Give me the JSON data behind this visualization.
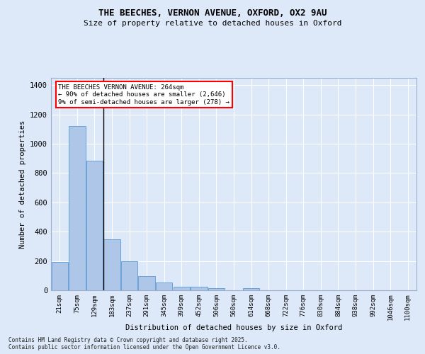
{
  "title_line1": "THE BEECHES, VERNON AVENUE, OXFORD, OX2 9AU",
  "title_line2": "Size of property relative to detached houses in Oxford",
  "xlabel": "Distribution of detached houses by size in Oxford",
  "ylabel": "Number of detached properties",
  "categories": [
    "21sqm",
    "75sqm",
    "129sqm",
    "183sqm",
    "237sqm",
    "291sqm",
    "345sqm",
    "399sqm",
    "452sqm",
    "506sqm",
    "560sqm",
    "614sqm",
    "668sqm",
    "722sqm",
    "776sqm",
    "830sqm",
    "884sqm",
    "938sqm",
    "992sqm",
    "1046sqm",
    "1100sqm"
  ],
  "values": [
    195,
    1120,
    885,
    350,
    200,
    95,
    55,
    22,
    22,
    14,
    0,
    13,
    0,
    0,
    0,
    0,
    0,
    0,
    0,
    0,
    0
  ],
  "bar_color": "#aec6e8",
  "bar_edge_color": "#5b9bd5",
  "annotation_text": "THE BEECHES VERNON AVENUE: 264sqm\n← 90% of detached houses are smaller (2,646)\n9% of semi-detached houses are larger (278) →",
  "vline_x_index": 3,
  "vline_color": "black",
  "background_color": "#dde8f8",
  "grid_color": "white",
  "ylim": [
    0,
    1450
  ],
  "yticks": [
    0,
    200,
    400,
    600,
    800,
    1000,
    1200,
    1400
  ],
  "footer_line1": "Contains HM Land Registry data © Crown copyright and database right 2025.",
  "footer_line2": "Contains public sector information licensed under the Open Government Licence v3.0."
}
